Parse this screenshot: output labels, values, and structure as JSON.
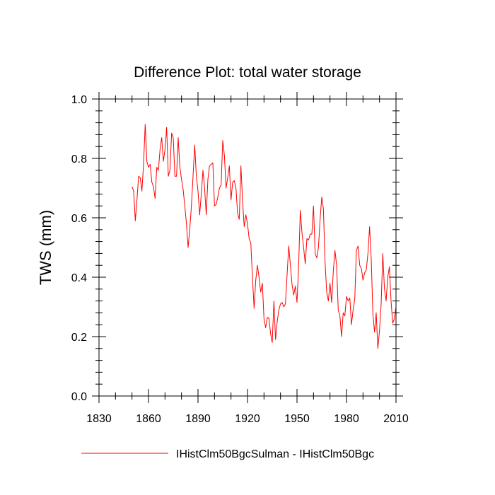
{
  "chart_data": {
    "type": "line",
    "title": "Difference Plot: total water storage",
    "xlabel": "",
    "ylabel": "TWS  (mm)",
    "xlim": [
      1830,
      2010
    ],
    "ylim": [
      0.0,
      1.0
    ],
    "xticks": [
      1830,
      1860,
      1890,
      1920,
      1950,
      1980,
      2010
    ],
    "yticks": [
      0.0,
      0.2,
      0.4,
      0.6,
      0.8,
      1.0
    ],
    "ytick_labels": [
      "0.0",
      "0.2",
      "0.4",
      "0.6",
      "0.8",
      "1.0"
    ],
    "line_color": "#ff0000",
    "grid": false,
    "legend_position": "bottom",
    "series": [
      {
        "name": "IHistClm50BgcSulman - IHistClm50Bgc",
        "x": [
          1850,
          1851,
          1852,
          1853,
          1854,
          1855,
          1856,
          1857,
          1858,
          1859,
          1860,
          1861,
          1862,
          1863,
          1864,
          1865,
          1866,
          1867,
          1868,
          1869,
          1870,
          1871,
          1872,
          1873,
          1874,
          1875,
          1876,
          1877,
          1878,
          1879,
          1880,
          1881,
          1882,
          1883,
          1884,
          1885,
          1886,
          1887,
          1888,
          1889,
          1890,
          1891,
          1892,
          1893,
          1894,
          1895,
          1896,
          1897,
          1898,
          1899,
          1900,
          1901,
          1902,
          1903,
          1904,
          1905,
          1906,
          1907,
          1908,
          1909,
          1910,
          1911,
          1912,
          1913,
          1914,
          1915,
          1916,
          1917,
          1918,
          1919,
          1920,
          1921,
          1922,
          1923,
          1924,
          1925,
          1926,
          1927,
          1928,
          1929,
          1930,
          1931,
          1932,
          1933,
          1934,
          1935,
          1936,
          1937,
          1938,
          1939,
          1940,
          1941,
          1942,
          1943,
          1944,
          1945,
          1946,
          1947,
          1948,
          1949,
          1950,
          1951,
          1952,
          1953,
          1954,
          1955,
          1956,
          1957,
          1958,
          1959,
          1960,
          1961,
          1962,
          1963,
          1964,
          1965,
          1966,
          1967,
          1968,
          1969,
          1970,
          1971,
          1972,
          1973,
          1974,
          1975,
          1976,
          1977,
          1978,
          1979,
          1980,
          1981,
          1982,
          1983,
          1984,
          1985,
          1986,
          1987,
          1988,
          1989,
          1990,
          1991,
          1992,
          1993,
          1994,
          1995,
          1996,
          1997,
          1998,
          1999,
          2000,
          2001,
          2002,
          2003,
          2004,
          2005,
          2006,
          2007,
          2008,
          2009,
          2010
        ],
        "values": [
          0.705,
          0.69,
          0.59,
          0.66,
          0.74,
          0.735,
          0.69,
          0.78,
          0.915,
          0.79,
          0.77,
          0.78,
          0.72,
          0.705,
          0.665,
          0.77,
          0.76,
          0.83,
          0.87,
          0.79,
          0.83,
          0.905,
          0.74,
          0.76,
          0.885,
          0.87,
          0.74,
          0.74,
          0.87,
          0.77,
          0.73,
          0.695,
          0.64,
          0.58,
          0.5,
          0.56,
          0.64,
          0.74,
          0.845,
          0.74,
          0.69,
          0.61,
          0.68,
          0.76,
          0.7,
          0.61,
          0.73,
          0.775,
          0.78,
          0.785,
          0.64,
          0.645,
          0.67,
          0.7,
          0.71,
          0.86,
          0.81,
          0.7,
          0.735,
          0.775,
          0.66,
          0.72,
          0.725,
          0.7,
          0.615,
          0.595,
          0.775,
          0.66,
          0.57,
          0.61,
          0.58,
          0.53,
          0.515,
          0.4,
          0.295,
          0.39,
          0.44,
          0.4,
          0.35,
          0.38,
          0.26,
          0.23,
          0.265,
          0.26,
          0.21,
          0.18,
          0.32,
          0.19,
          0.25,
          0.29,
          0.31,
          0.315,
          0.3,
          0.31,
          0.41,
          0.505,
          0.44,
          0.375,
          0.34,
          0.37,
          0.315,
          0.44,
          0.625,
          0.55,
          0.5,
          0.445,
          0.53,
          0.525,
          0.545,
          0.545,
          0.64,
          0.48,
          0.465,
          0.5,
          0.595,
          0.67,
          0.63,
          0.45,
          0.35,
          0.32,
          0.38,
          0.315,
          0.42,
          0.49,
          0.44,
          0.29,
          0.27,
          0.2,
          0.28,
          0.27,
          0.335,
          0.32,
          0.33,
          0.24,
          0.29,
          0.325,
          0.49,
          0.505,
          0.44,
          0.43,
          0.39,
          0.415,
          0.425,
          0.48,
          0.57,
          0.46,
          0.275,
          0.215,
          0.28,
          0.16,
          0.22,
          0.31,
          0.48,
          0.36,
          0.32,
          0.4,
          0.435,
          0.32,
          0.245,
          0.26,
          0.3
        ]
      }
    ]
  }
}
